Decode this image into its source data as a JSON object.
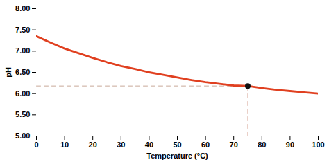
{
  "chart_data": {
    "type": "line",
    "xlabel": "Temperature (°C)",
    "ylabel": "pH",
    "x": [
      0,
      5,
      10,
      15,
      20,
      25,
      30,
      35,
      40,
      45,
      50,
      55,
      60,
      65,
      70,
      75,
      80,
      85,
      90,
      95,
      100
    ],
    "values": [
      7.35,
      7.2,
      7.06,
      6.95,
      6.84,
      6.74,
      6.65,
      6.58,
      6.5,
      6.44,
      6.38,
      6.32,
      6.27,
      6.23,
      6.19,
      6.18,
      6.13,
      6.09,
      6.06,
      6.03,
      6.0
    ],
    "color": "#E04020",
    "xlim": [
      0,
      100
    ],
    "ylim": [
      5.0,
      8.0
    ],
    "xticks": [
      0,
      10,
      20,
      30,
      40,
      50,
      60,
      70,
      80,
      90,
      100
    ],
    "yticks": [
      {
        "value": 5.0,
        "label": "5.00"
      },
      {
        "value": 5.5,
        "label": "5.50"
      },
      {
        "value": 6.0,
        "label": "6.00"
      },
      {
        "value": 6.5,
        "label": "6.50"
      },
      {
        "value": 7.0,
        "label": "7.00"
      },
      {
        "value": 7.5,
        "label": "7.50"
      },
      {
        "value": 8.0,
        "label": "8.00"
      }
    ],
    "grid": false,
    "reference_lines": [
      {
        "x": [
          0,
          75
        ],
        "values": [
          6.18,
          6.18
        ],
        "color": "#c8a898",
        "line_style": "dashed"
      },
      {
        "x": [
          75,
          75
        ],
        "values": [
          5.0,
          6.18
        ],
        "color": "#d4a090",
        "line_style": "dashed"
      }
    ],
    "points": [
      {
        "x": 75,
        "y": 6.18,
        "color": "#111111"
      }
    ]
  }
}
